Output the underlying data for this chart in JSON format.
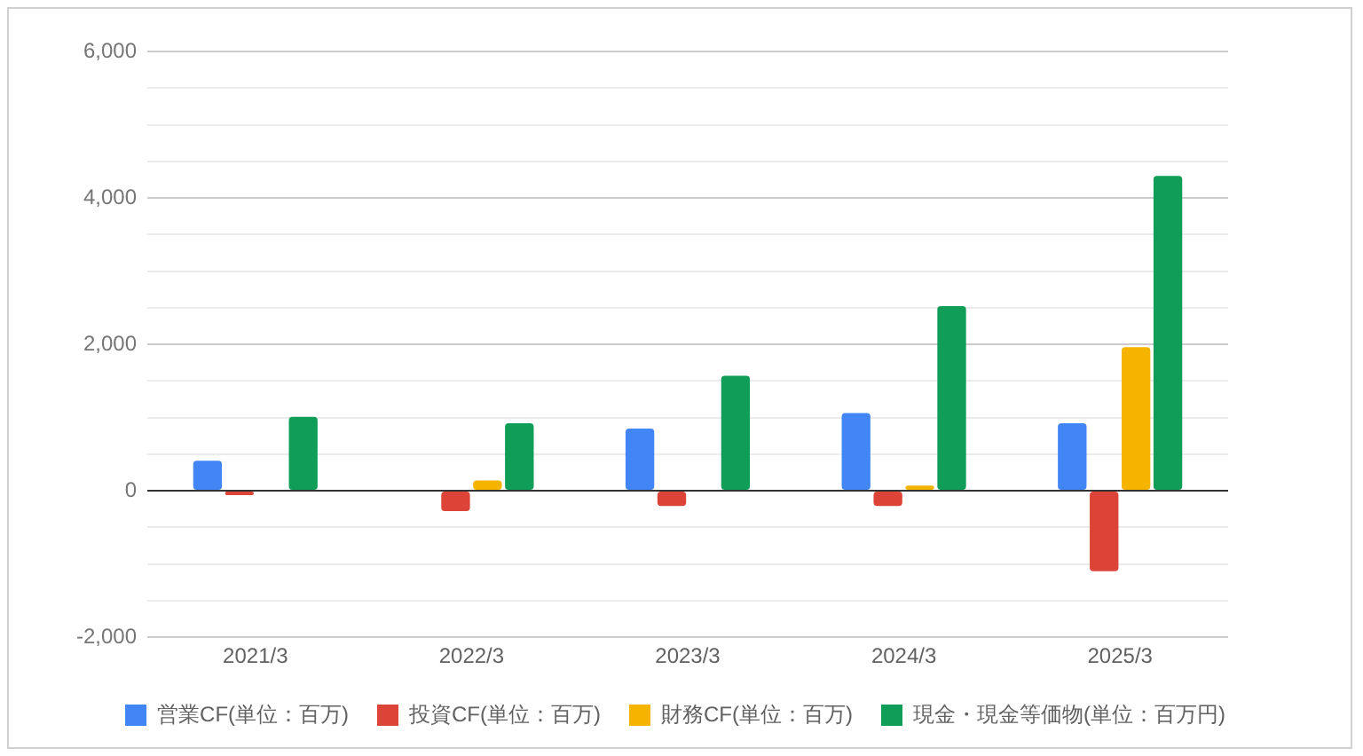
{
  "chart_data": {
    "type": "bar",
    "categories": [
      "2021/3",
      "2022/3",
      "2023/3",
      "2024/3",
      "2025/3"
    ],
    "series": [
      {
        "name": "営業CF(単位：百万)",
        "color": "#4285f4",
        "values": [
          410,
          null,
          850,
          1060,
          920
        ]
      },
      {
        "name": "投資CF(単位：百万)",
        "color": "#db4437",
        "values": [
          -60,
          -280,
          -210,
          -210,
          -1100
        ]
      },
      {
        "name": "財務CF(単位：百万)",
        "color": "#f4b400",
        "values": [
          null,
          140,
          null,
          70,
          1960
        ]
      },
      {
        "name": "現金・現金等価物(単位：百万円)",
        "color": "#0f9d58",
        "values": [
          1010,
          920,
          1570,
          2520,
          4300
        ]
      }
    ],
    "ylim": [
      -2000,
      6000
    ],
    "yticks": [
      {
        "value": -2000,
        "label": "-2,000"
      },
      {
        "value": -1500,
        "label": null
      },
      {
        "value": -1000,
        "label": null
      },
      {
        "value": -500,
        "label": null
      },
      0,
      {
        "value": 500,
        "label": null
      },
      {
        "value": 1000,
        "label": null
      },
      {
        "value": 1500,
        "label": null
      },
      {
        "value": 2000,
        "label": "2,000"
      },
      {
        "value": 2500,
        "label": null
      },
      {
        "value": 3000,
        "label": null
      },
      {
        "value": 3500,
        "label": null
      },
      {
        "value": 4000,
        "label": "4,000"
      },
      {
        "value": 4500,
        "label": null
      },
      {
        "value": 5000,
        "label": null
      },
      {
        "value": 5500,
        "label": null
      },
      {
        "value": 6000,
        "label": "6,000"
      }
    ],
    "grid": "y",
    "legend": "bottom"
  }
}
